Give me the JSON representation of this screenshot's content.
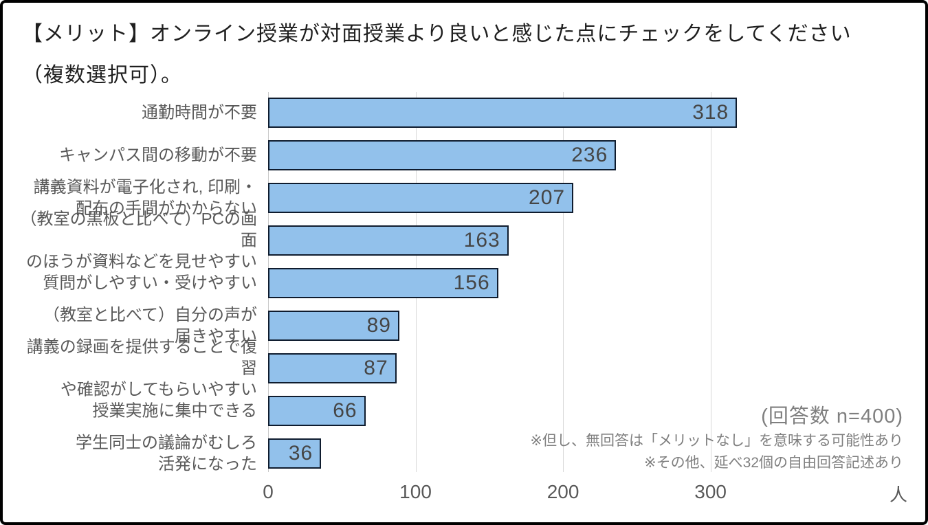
{
  "title": {
    "text": "【メリット】オンライン授業が対面授業より良いと感じた点にチェックをしてください\n（複数選択可）。"
  },
  "chart_data": {
    "type": "bar",
    "orientation": "horizontal",
    "categories": [
      "通勤時間が不要",
      "キャンパス間の移動が不要",
      "講義資料が電子化され, 印刷・\n配布の手間がかからない",
      "（教室の黒板と比べて）PCの画面\nのほうが資料などを見せやすい",
      "質問がしやすい・受けやすい",
      "（教室と比べて）自分の声が\n届きやすい",
      "講義の録画を提供することで復習\nや確認がしてもらいやすい",
      "授業実施に集中できる",
      "学生同士の議論がむしろ\n活発になった"
    ],
    "values": [
      318,
      236,
      207,
      163,
      156,
      89,
      87,
      66,
      36
    ],
    "value_label_position": "inside-end",
    "x_ticks": [
      0,
      100,
      200,
      300
    ],
    "x_unit": "人",
    "xlim": [
      0,
      440
    ],
    "grid": "vertical-only",
    "legend": "none",
    "bar_fill_color": "#92c1eb",
    "bar_border_color": "#0f1c2e",
    "value_label_color": "#454545",
    "category_label_color": "#595959",
    "tick_label_color": "#595959"
  },
  "annotations": {
    "response_count": "(回答数 n=400)",
    "note1": "※但し、無回答は「メリットなし」を意味する可能性あり",
    "note2": "※その他、延べ32個の自由回答記述あり"
  }
}
